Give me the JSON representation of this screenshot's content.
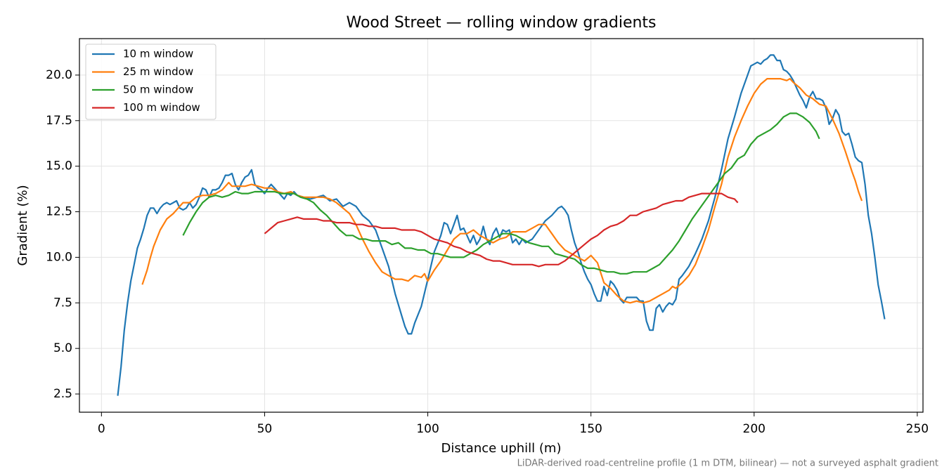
{
  "chart_data": {
    "type": "line",
    "title": "Wood Street — rolling window gradients",
    "xlabel": "Distance uphill (m)",
    "ylabel": "Gradient (%)",
    "footnote": "LiDAR-derived road-centreline profile (1 m DTM, bilinear) — not a surveyed asphalt gradient",
    "xlim": [
      -6.75,
      251.75
    ],
    "ylim": [
      1.5,
      22.0
    ],
    "xticks": [
      0,
      50,
      100,
      150,
      200,
      250
    ],
    "yticks": [
      2.5,
      {
        "value": 5,
        "label": "5.0"
      },
      7.5,
      {
        "value": 10,
        "label": "10.0"
      },
      12.5,
      {
        "value": 15,
        "label": "15.0"
      },
      17.5,
      {
        "value": 20,
        "label": "20.0"
      }
    ],
    "grid": true,
    "legend": "upper left",
    "series": [
      {
        "name": "10 m window",
        "color": "#1f77b4",
        "x": [
          5,
          6,
          7,
          8,
          9,
          10,
          11,
          12,
          13,
          14,
          15,
          16,
          17,
          18,
          19,
          20,
          21,
          22,
          23,
          24,
          25,
          26,
          27,
          28,
          29,
          30,
          31,
          32,
          33,
          34,
          35,
          36,
          37,
          38,
          39,
          40,
          41,
          42,
          43,
          44,
          45,
          46,
          47,
          48,
          49,
          50,
          51,
          52,
          53,
          54,
          55,
          56,
          57,
          58,
          59,
          60,
          62,
          64,
          66,
          68,
          70,
          72,
          74,
          76,
          78,
          80,
          82,
          84,
          86,
          88,
          90,
          92,
          93,
          94,
          95,
          96,
          98,
          100,
          102,
          104,
          105,
          106,
          107,
          108,
          109,
          110,
          111,
          112,
          113,
          114,
          115,
          116,
          117,
          118,
          119,
          120,
          121,
          122,
          123,
          124,
          125,
          126,
          127,
          128,
          129,
          130,
          132,
          134,
          136,
          138,
          140,
          141,
          142,
          143,
          144,
          145,
          146,
          147,
          148,
          149,
          150,
          151,
          152,
          153,
          154,
          155,
          156,
          157,
          158,
          159,
          160,
          161,
          162,
          163,
          164,
          165,
          166,
          167,
          168,
          169,
          170,
          171,
          172,
          173,
          174,
          175,
          176,
          177,
          178,
          180,
          182,
          184,
          185,
          186,
          188,
          190,
          192,
          194,
          196,
          198,
          199,
          200,
          201,
          202,
          203,
          204,
          205,
          206,
          207,
          208,
          209,
          210,
          211,
          212,
          213,
          214,
          215,
          216,
          217,
          218,
          219,
          220,
          221,
          222,
          223,
          224,
          225,
          226,
          227,
          228,
          229,
          230,
          231,
          232,
          233,
          234,
          235,
          236,
          237,
          238,
          239,
          240
        ],
        "values": [
          2.4,
          4.0,
          6.0,
          7.5,
          8.7,
          9.6,
          10.5,
          11.0,
          11.6,
          12.3,
          12.7,
          12.7,
          12.4,
          12.7,
          12.9,
          13.0,
          12.9,
          13.0,
          13.1,
          12.7,
          12.6,
          12.7,
          13.0,
          12.7,
          12.9,
          13.3,
          13.8,
          13.7,
          13.3,
          13.7,
          13.7,
          13.8,
          14.1,
          14.5,
          14.5,
          14.6,
          14.0,
          13.7,
          14.1,
          14.4,
          14.5,
          14.8,
          14.0,
          13.8,
          13.7,
          13.5,
          13.8,
          14.0,
          13.8,
          13.6,
          13.4,
          13.2,
          13.5,
          13.4,
          13.6,
          13.4,
          13.3,
          13.2,
          13.3,
          13.4,
          13.1,
          13.2,
          12.8,
          13.0,
          12.8,
          12.3,
          12.0,
          11.5,
          10.5,
          9.5,
          8.0,
          6.8,
          6.2,
          5.8,
          5.8,
          6.4,
          7.3,
          8.8,
          10.3,
          11.2,
          11.9,
          11.8,
          11.3,
          11.8,
          12.3,
          11.5,
          11.6,
          11.2,
          10.8,
          11.2,
          10.7,
          11.0,
          11.7,
          11.0,
          10.7,
          11.3,
          11.6,
          11.1,
          11.5,
          11.4,
          11.5,
          10.8,
          11.0,
          10.7,
          11.0,
          10.8,
          11.0,
          11.5,
          12.0,
          12.3,
          12.7,
          12.8,
          12.6,
          12.3,
          11.5,
          10.8,
          10.3,
          9.7,
          9.2,
          8.8,
          8.5,
          8.0,
          7.6,
          7.6,
          8.4,
          7.9,
          8.7,
          8.5,
          8.2,
          7.7,
          7.5,
          7.8,
          7.8,
          7.8,
          7.8,
          7.6,
          7.6,
          6.5,
          6.0,
          6.0,
          7.2,
          7.4,
          7.0,
          7.3,
          7.5,
          7.4,
          7.7,
          8.8,
          9.0,
          9.5,
          10.2,
          11.0,
          11.5,
          12.0,
          13.3,
          14.8,
          16.5,
          17.7,
          19.0,
          20.0,
          20.5,
          20.6,
          20.7,
          20.6,
          20.8,
          20.9,
          21.1,
          21.1,
          20.8,
          20.8,
          20.3,
          20.2,
          20.0,
          19.7,
          19.3,
          18.9,
          18.6,
          18.2,
          18.8,
          19.1,
          18.7,
          18.7,
          18.6,
          18.2,
          17.3,
          17.6,
          18.1,
          17.8,
          16.9,
          16.7,
          16.8,
          16.2,
          15.5,
          15.3,
          15.2,
          14.0,
          12.3,
          11.3,
          10.0,
          8.5,
          7.6,
          6.6
        ]
      },
      {
        "name": "25 m window",
        "color": "#ff7f0e",
        "x": [
          12.5,
          14,
          15,
          16,
          18,
          20,
          22,
          24,
          25,
          27,
          29,
          31,
          33,
          35,
          37,
          38,
          39,
          40,
          42,
          44,
          46,
          48,
          50,
          52,
          54,
          56,
          58,
          60,
          62,
          64,
          66,
          68,
          70,
          72,
          74,
          76,
          78,
          80,
          82,
          84,
          86,
          88,
          90,
          92,
          94,
          96,
          98,
          99,
          100,
          102,
          104,
          106,
          108,
          110,
          112,
          114,
          116,
          118,
          120,
          122,
          124,
          126,
          128,
          130,
          132,
          134,
          136,
          138,
          140,
          142,
          144,
          146,
          148,
          150,
          152,
          154,
          156,
          158,
          160,
          162,
          164,
          166,
          168,
          170,
          172,
          174,
          175,
          176,
          178,
          180,
          182,
          184,
          186,
          188,
          190,
          192,
          194,
          196,
          198,
          200,
          202,
          204,
          206,
          208,
          210,
          211,
          212,
          214,
          216,
          218,
          220,
          222,
          224,
          226,
          228,
          230,
          231,
          232,
          233
        ],
        "values": [
          8.5,
          9.3,
          10.0,
          10.6,
          11.5,
          12.1,
          12.4,
          12.8,
          13.0,
          13.0,
          13.3,
          13.4,
          13.4,
          13.5,
          13.7,
          13.9,
          14.1,
          13.9,
          13.9,
          13.9,
          14.0,
          13.9,
          13.8,
          13.8,
          13.6,
          13.5,
          13.6,
          13.4,
          13.3,
          13.3,
          13.3,
          13.3,
          13.2,
          13.0,
          12.7,
          12.4,
          11.8,
          11.0,
          10.3,
          9.7,
          9.2,
          9.0,
          8.8,
          8.8,
          8.7,
          9.0,
          8.9,
          9.1,
          8.7,
          9.3,
          9.8,
          10.4,
          11.0,
          11.3,
          11.3,
          11.5,
          11.2,
          11.0,
          10.8,
          11.0,
          11.1,
          11.4,
          11.4,
          11.4,
          11.6,
          11.8,
          11.8,
          11.3,
          10.8,
          10.4,
          10.2,
          10.0,
          9.8,
          10.1,
          9.7,
          8.6,
          8.3,
          7.9,
          7.6,
          7.5,
          7.6,
          7.5,
          7.6,
          7.8,
          8.0,
          8.2,
          8.4,
          8.3,
          8.6,
          9.0,
          9.6,
          10.5,
          11.5,
          12.8,
          14.0,
          15.5,
          16.6,
          17.5,
          18.3,
          19.0,
          19.5,
          19.8,
          19.8,
          19.8,
          19.7,
          19.8,
          19.6,
          19.3,
          18.9,
          18.7,
          18.4,
          18.3,
          17.6,
          16.8,
          15.8,
          14.7,
          14.2,
          13.6,
          13.1
        ]
      },
      {
        "name": "50 m window",
        "color": "#2ca02c",
        "x": [
          25,
          27,
          29,
          31,
          33,
          35,
          37,
          39,
          41,
          43,
          45,
          47,
          49,
          51,
          53,
          55,
          57,
          59,
          61,
          63,
          65,
          67,
          69,
          71,
          73,
          75,
          77,
          79,
          81,
          83,
          85,
          87,
          89,
          91,
          93,
          95,
          97,
          99,
          101,
          103,
          105,
          107,
          109,
          111,
          113,
          115,
          117,
          119,
          121,
          123,
          125,
          127,
          129,
          131,
          133,
          135,
          137,
          139,
          141,
          143,
          145,
          147,
          149,
          151,
          153,
          155,
          157,
          159,
          161,
          163,
          165,
          167,
          169,
          171,
          173,
          175,
          177,
          179,
          181,
          183,
          185,
          187,
          189,
          191,
          193,
          195,
          197,
          199,
          201,
          203,
          205,
          207,
          209,
          211,
          213,
          215,
          217,
          219,
          220
        ],
        "values": [
          11.2,
          11.9,
          12.5,
          13.0,
          13.3,
          13.4,
          13.3,
          13.4,
          13.6,
          13.5,
          13.5,
          13.6,
          13.6,
          13.6,
          13.6,
          13.5,
          13.5,
          13.5,
          13.3,
          13.2,
          13.0,
          12.6,
          12.3,
          11.9,
          11.5,
          11.2,
          11.2,
          11.0,
          11.0,
          10.9,
          10.9,
          10.9,
          10.7,
          10.8,
          10.5,
          10.5,
          10.4,
          10.4,
          10.2,
          10.2,
          10.1,
          10.0,
          10.0,
          10.0,
          10.2,
          10.4,
          10.7,
          10.9,
          11.1,
          11.3,
          11.3,
          11.2,
          11.0,
          10.8,
          10.7,
          10.6,
          10.6,
          10.2,
          10.1,
          10.0,
          9.9,
          9.6,
          9.4,
          9.4,
          9.3,
          9.2,
          9.2,
          9.1,
          9.1,
          9.2,
          9.2,
          9.2,
          9.4,
          9.6,
          10.0,
          10.4,
          10.9,
          11.5,
          12.1,
          12.6,
          13.1,
          13.6,
          14.1,
          14.6,
          14.9,
          15.4,
          15.6,
          16.2,
          16.6,
          16.8,
          17.0,
          17.3,
          17.7,
          17.9,
          17.9,
          17.7,
          17.4,
          16.9,
          16.5
        ]
      },
      {
        "name": "100 m window",
        "color": "#d62728",
        "x": [
          50,
          52,
          54,
          56,
          58,
          60,
          62,
          64,
          66,
          68,
          70,
          72,
          74,
          76,
          78,
          80,
          82,
          84,
          86,
          88,
          90,
          92,
          94,
          96,
          98,
          100,
          102,
          104,
          106,
          108,
          110,
          112,
          114,
          116,
          118,
          120,
          122,
          124,
          126,
          128,
          130,
          132,
          134,
          136,
          138,
          140,
          142,
          144,
          146,
          148,
          150,
          152,
          154,
          156,
          158,
          160,
          162,
          164,
          166,
          168,
          170,
          172,
          174,
          176,
          178,
          180,
          182,
          184,
          186,
          188,
          190,
          192,
          194,
          195
        ],
        "values": [
          11.3,
          11.6,
          11.9,
          12.0,
          12.1,
          12.2,
          12.1,
          12.1,
          12.1,
          12.0,
          12.0,
          11.9,
          11.9,
          11.9,
          11.8,
          11.8,
          11.7,
          11.7,
          11.6,
          11.6,
          11.6,
          11.5,
          11.5,
          11.5,
          11.4,
          11.2,
          11.0,
          10.9,
          10.8,
          10.6,
          10.5,
          10.3,
          10.2,
          10.1,
          9.9,
          9.8,
          9.8,
          9.7,
          9.6,
          9.6,
          9.6,
          9.6,
          9.5,
          9.6,
          9.6,
          9.6,
          9.8,
          10.1,
          10.4,
          10.7,
          11.0,
          11.2,
          11.5,
          11.7,
          11.8,
          12.0,
          12.3,
          12.3,
          12.5,
          12.6,
          12.7,
          12.9,
          13.0,
          13.1,
          13.1,
          13.3,
          13.4,
          13.5,
          13.5,
          13.5,
          13.5,
          13.3,
          13.2,
          13.0
        ]
      }
    ]
  }
}
